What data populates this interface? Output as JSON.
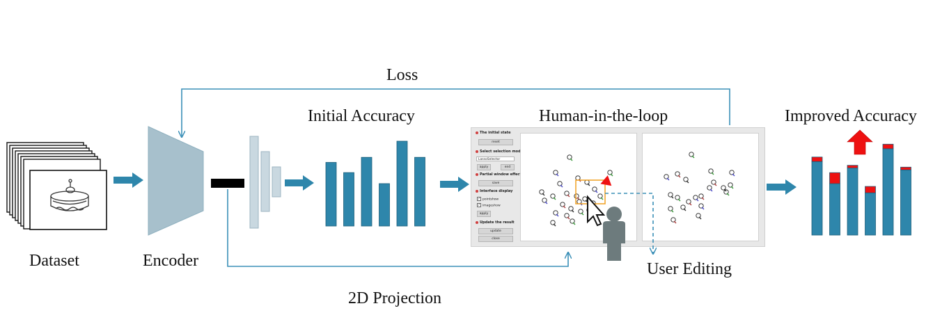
{
  "labels": {
    "loss": "Loss",
    "initial_accuracy": "Initial Accuracy",
    "human_in_the_loop": "Human-in-the-loop",
    "improved_accuracy": "Improved Accuracy",
    "dataset": "Dataset",
    "encoder": "Encoder",
    "user_editing": "User Editing",
    "projection_2d": "2D Projection"
  },
  "ui_panel": {
    "initial_state": "The initial state",
    "reset": "reset",
    "select_mode": "Select selection mode",
    "selector": "LassoSelector",
    "apply": "apply",
    "end": "end",
    "partial_window": "Partial window effect",
    "save": "save",
    "interface_display": "Interface display",
    "pointshow": "pointshow",
    "imageshow": "imageshow",
    "apply2": "apply",
    "update_result": "Update the result",
    "update": "update",
    "close": "close"
  },
  "initial_bars": [
    0.75,
    0.63,
    0.81,
    0.5,
    1.0,
    0.81
  ],
  "improved_bars": [
    {
      "base": 0.8,
      "gain": 0.05
    },
    {
      "base": 0.56,
      "gain": 0.12
    },
    {
      "base": 0.73,
      "gain": 0.03
    },
    {
      "base": 0.46,
      "gain": 0.07
    },
    {
      "base": 0.94,
      "gain": 0.05
    },
    {
      "base": 0.71,
      "gain": 0.03
    }
  ],
  "colors": {
    "bar": "#2e86ab",
    "gain": "#ee1111",
    "arrow": "#2e86ab",
    "encoder": "#a7c0cc",
    "line": "#3a8fb7"
  }
}
